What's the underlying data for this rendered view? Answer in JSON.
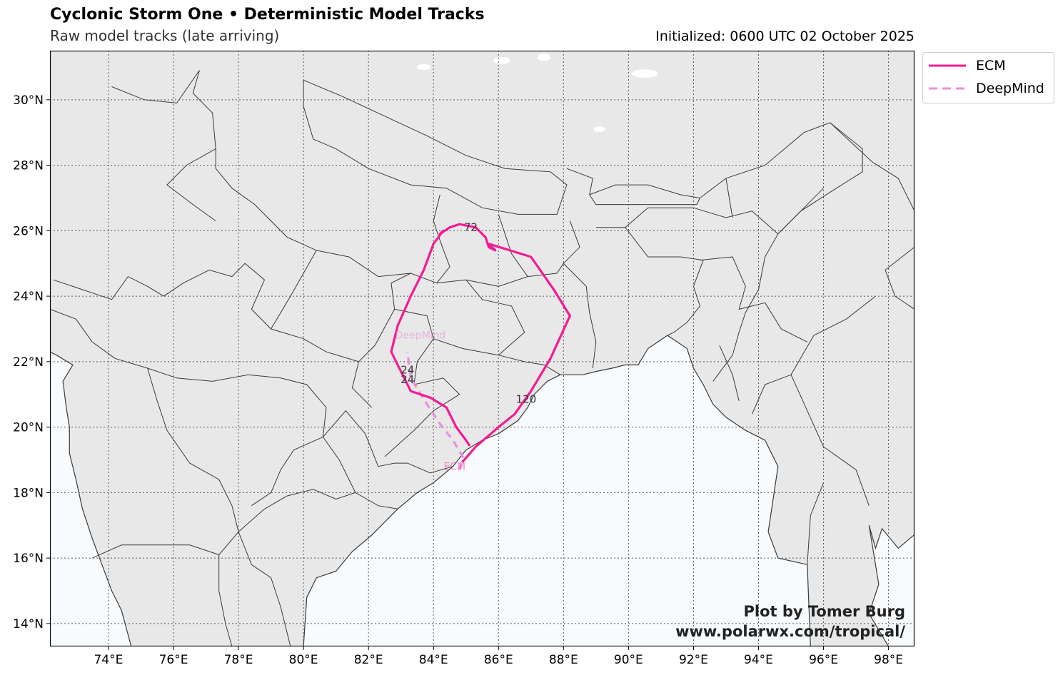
{
  "header": {
    "title": "Cyclonic Storm One • Deterministic Model Tracks",
    "subtitle": "Raw model tracks (late arriving)",
    "initialized": "Initialized: 0600 UTC 02 October 2025"
  },
  "map": {
    "lon_range": [
      72.2,
      98.8
    ],
    "lat_range": [
      13.3,
      31.5
    ],
    "lon_ticks": [
      74,
      76,
      78,
      80,
      82,
      84,
      86,
      88,
      90,
      92,
      94,
      96,
      98
    ],
    "lat_ticks": [
      14,
      16,
      18,
      20,
      22,
      24,
      26,
      28,
      30
    ],
    "lon_tick_labels": [
      "74°E",
      "76°E",
      "78°E",
      "80°E",
      "82°E",
      "84°E",
      "86°E",
      "88°E",
      "90°E",
      "92°E",
      "94°E",
      "96°E",
      "98°E"
    ],
    "lat_tick_labels": [
      "14°N",
      "16°N",
      "18°N",
      "20°N",
      "22°N",
      "24°N",
      "26°N",
      "28°N",
      "30°N"
    ],
    "land_color": "#e8e8e8",
    "ocean_color": "#f7fbfd",
    "border_color": "#3a3a3a",
    "grid_style": "dotted"
  },
  "tracks": [
    {
      "name": "ECM",
      "color": "#f21c94",
      "style": "solid",
      "start_label": "ECM",
      "points": [
        [
          84.9,
          18.95
        ],
        [
          85.3,
          19.4
        ],
        [
          86.0,
          20.0
        ],
        [
          86.5,
          20.4
        ],
        [
          87.0,
          21.1
        ],
        [
          87.6,
          22.1
        ],
        [
          88.2,
          23.4
        ],
        [
          87.7,
          24.2
        ],
        [
          87.0,
          25.2
        ],
        [
          85.7,
          25.6
        ],
        [
          85.9,
          25.4
        ],
        [
          85.7,
          25.5
        ],
        [
          85.6,
          25.8
        ],
        [
          85.3,
          26.1
        ],
        [
          84.8,
          26.2
        ],
        [
          84.5,
          26.1
        ],
        [
          84.2,
          25.9
        ],
        [
          84.3,
          26.0
        ],
        [
          84.0,
          25.6
        ],
        [
          83.7,
          24.8
        ],
        [
          83.3,
          24.0
        ],
        [
          82.9,
          23.1
        ],
        [
          82.7,
          22.3
        ],
        [
          82.9,
          21.9
        ],
        [
          83.3,
          21.1
        ],
        [
          83.9,
          20.9
        ],
        [
          84.4,
          20.6
        ],
        [
          84.7,
          20.0
        ],
        [
          85.0,
          19.6
        ],
        [
          85.1,
          19.45
        ]
      ],
      "point_labels": [
        {
          "text": "24",
          "lon": 83.2,
          "lat": 21.45
        },
        {
          "text": "72",
          "lon": 85.15,
          "lat": 26.1
        },
        {
          "text": "120",
          "lon": 86.85,
          "lat": 20.85
        }
      ]
    },
    {
      "name": "DeepMind",
      "color": "#ea8fde",
      "style": "dashed",
      "start_label": "DeepMind",
      "points": [
        [
          84.8,
          18.7
        ],
        [
          84.9,
          19.1
        ],
        [
          84.6,
          19.6
        ],
        [
          84.2,
          20.1
        ],
        [
          83.8,
          20.7
        ],
        [
          83.3,
          21.5
        ],
        [
          83.2,
          22.3
        ]
      ],
      "point_labels": [
        {
          "text": "24",
          "lon": 83.2,
          "lat": 21.75
        }
      ]
    }
  ],
  "legend": {
    "items": [
      {
        "label": "ECM",
        "color": "#f21c94",
        "style": "solid"
      },
      {
        "label": "DeepMind",
        "color": "#ea8fde",
        "style": "dashed"
      }
    ]
  },
  "credit": {
    "line1": "Plot by Tomer Burg",
    "line2": "www.polarwx.com/tropical/"
  }
}
